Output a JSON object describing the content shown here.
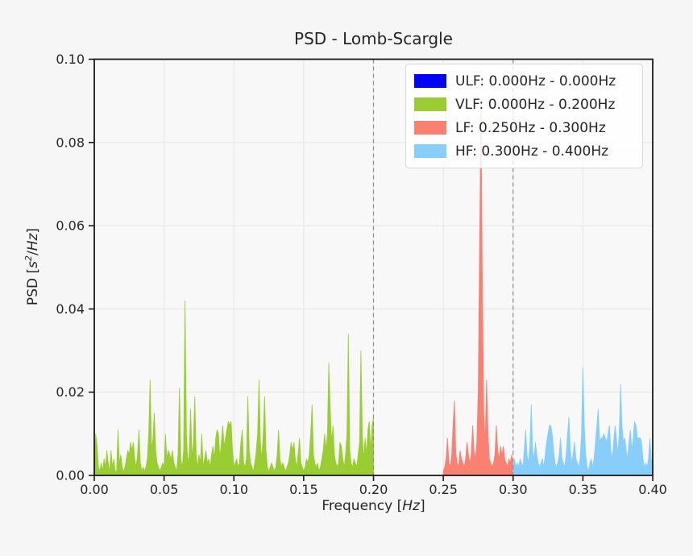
{
  "title": "PSD - Lomb-Scargle",
  "xlabel": {
    "prefix": "Frequency [",
    "unit": "Hz",
    "suffix": "]"
  },
  "ylabel": {
    "prefix": "PSD [",
    "base": "s",
    "sup": "2",
    "mid": "/",
    "unit": "Hz",
    "suffix": "]"
  },
  "legend": {
    "position": "upper right",
    "items": [
      {
        "name": "ULF",
        "label": "ULF: 0.000Hz - 0.000Hz",
        "color": "#0000ff"
      },
      {
        "name": "VLF",
        "label": "VLF: 0.000Hz - 0.200Hz",
        "color": "#9acd32"
      },
      {
        "name": "LF",
        "label": "LF: 0.250Hz - 0.300Hz",
        "color": "#fa8072"
      },
      {
        "name": "HF",
        "label": "HF: 0.300Hz - 0.400Hz",
        "color": "#87cefa"
      }
    ]
  },
  "colors": {
    "figure_bg": "#f6f6f6",
    "plot_bg": "#f8f8f8",
    "grid": "#e8e8e8",
    "spine": "#1a1a1a",
    "dashed_line": "#8c8c8c",
    "text": "#262626"
  },
  "chart_data": {
    "type": "area",
    "title": "PSD - Lomb-Scargle",
    "xlabel": "Frequency [Hz]",
    "ylabel": "PSD [s^2/Hz]",
    "xlim": [
      0.0,
      0.4
    ],
    "ylim": [
      0.0,
      0.1
    ],
    "xticks": [
      0.0,
      0.05,
      0.1,
      0.15,
      0.2,
      0.25,
      0.3,
      0.35,
      0.4
    ],
    "xtick_labels": [
      "0.00",
      "0.05",
      "0.10",
      "0.15",
      "0.20",
      "0.25",
      "0.30",
      "0.35",
      "0.40"
    ],
    "yticks": [
      0.0,
      0.02,
      0.04,
      0.06,
      0.08,
      0.1
    ],
    "ytick_labels": [
      "0.00",
      "0.02",
      "0.04",
      "0.06",
      "0.08",
      "0.10"
    ],
    "grid": true,
    "legend_position": "upper right",
    "band_boundary_lines_x": [
      0.2,
      0.3
    ],
    "series": [
      {
        "name": "ULF",
        "band_hz": [
          0.0,
          0.0
        ],
        "color": "#0000ff",
        "f_start": 0.0,
        "f_step": 0.001,
        "values": []
      },
      {
        "name": "VLF",
        "band_hz": [
          0.0,
          0.2
        ],
        "color": "#9acd32",
        "f_start": 0.0,
        "f_step": 0.001,
        "values": [
          0.001,
          0.01,
          0.007,
          0.002,
          0.001,
          0.003,
          0.001,
          0.004,
          0.002,
          0.006,
          0.003,
          0.001,
          0.006,
          0.002,
          0.004,
          0.001,
          0.001,
          0.011,
          0.003,
          0.005,
          0.002,
          0.001,
          0.002,
          0.004,
          0.006,
          0.005,
          0.008,
          0.006,
          0.008,
          0.004,
          0.002,
          0.005,
          0.011,
          0.003,
          0.001,
          0.002,
          0.001,
          0.002,
          0.004,
          0.01,
          0.023,
          0.006,
          0.009,
          0.015,
          0.006,
          0.003,
          0.002,
          0.001,
          0.002,
          0.003,
          0.002,
          0.01,
          0.004,
          0.006,
          0.005,
          0.004,
          0.006,
          0.003,
          0.002,
          0.001,
          0.005,
          0.021,
          0.004,
          0.002,
          0.006,
          0.042,
          0.01,
          0.003,
          0.005,
          0.016,
          0.004,
          0.008,
          0.019,
          0.005,
          0.002,
          0.005,
          0.003,
          0.01,
          0.002,
          0.004,
          0.006,
          0.003,
          0.004,
          0.002,
          0.005,
          0.007,
          0.004,
          0.009,
          0.011,
          0.01,
          0.004,
          0.008,
          0.012,
          0.007,
          0.009,
          0.011,
          0.013,
          0.012,
          0.013,
          0.006,
          0.002,
          0.003,
          0.004,
          0.002,
          0.003,
          0.008,
          0.011,
          0.003,
          0.002,
          0.004,
          0.019,
          0.006,
          0.003,
          0.002,
          0.001,
          0.003,
          0.006,
          0.01,
          0.023,
          0.008,
          0.004,
          0.01,
          0.019,
          0.006,
          0.002,
          0.001,
          0.002,
          0.003,
          0.002,
          0.001,
          0.002,
          0.005,
          0.011,
          0.004,
          0.002,
          0.003,
          0.002,
          0.001,
          0.002,
          0.003,
          0.005,
          0.008,
          0.006,
          0.008,
          0.004,
          0.002,
          0.005,
          0.009,
          0.003,
          0.002,
          0.001,
          0.002,
          0.004,
          0.003,
          0.005,
          0.01,
          0.017,
          0.005,
          0.003,
          0.002,
          0.003,
          0.001,
          0.002,
          0.004,
          0.006,
          0.01,
          0.006,
          0.01,
          0.027,
          0.016,
          0.008,
          0.012,
          0.005,
          0.003,
          0.002,
          0.003,
          0.008,
          0.007,
          0.004,
          0.002,
          0.005,
          0.01,
          0.034,
          0.006,
          0.003,
          0.002,
          0.004,
          0.003,
          0.002,
          0.005,
          0.008,
          0.03,
          0.01,
          0.004,
          0.009,
          0.005,
          0.011,
          0.013,
          0.006,
          0.012,
          0.014
        ]
      },
      {
        "name": "LF",
        "band_hz": [
          0.25,
          0.3
        ],
        "color": "#fa8072",
        "f_start": 0.25,
        "f_step": 0.001,
        "values": [
          0.001,
          0.002,
          0.004,
          0.009,
          0.003,
          0.002,
          0.005,
          0.012,
          0.018,
          0.005,
          0.003,
          0.002,
          0.006,
          0.004,
          0.003,
          0.002,
          0.004,
          0.008,
          0.005,
          0.003,
          0.005,
          0.012,
          0.006,
          0.004,
          0.008,
          0.02,
          0.055,
          0.09,
          0.045,
          0.015,
          0.008,
          0.023,
          0.01,
          0.004,
          0.003,
          0.002,
          0.003,
          0.005,
          0.012,
          0.006,
          0.004,
          0.007,
          0.005,
          0.007,
          0.004,
          0.003,
          0.002,
          0.004,
          0.003,
          0.005,
          0.002
        ]
      },
      {
        "name": "HF",
        "band_hz": [
          0.3,
          0.4
        ],
        "color": "#87cefa",
        "f_start": 0.3,
        "f_step": 0.001,
        "values": [
          0.002,
          0.004,
          0.002,
          0.003,
          0.002,
          0.004,
          0.003,
          0.002,
          0.006,
          0.011,
          0.005,
          0.003,
          0.007,
          0.017,
          0.006,
          0.004,
          0.008,
          0.005,
          0.003,
          0.002,
          0.003,
          0.004,
          0.002,
          0.005,
          0.008,
          0.01,
          0.012,
          0.012,
          0.01,
          0.006,
          0.003,
          0.002,
          0.003,
          0.005,
          0.009,
          0.004,
          0.003,
          0.002,
          0.005,
          0.01,
          0.014,
          0.006,
          0.003,
          0.005,
          0.008,
          0.004,
          0.003,
          0.002,
          0.004,
          0.01,
          0.026,
          0.012,
          0.005,
          0.002,
          0.001,
          0.003,
          0.004,
          0.002,
          0.004,
          0.008,
          0.012,
          0.016,
          0.008,
          0.009,
          0.009,
          0.01,
          0.009,
          0.008,
          0.01,
          0.012,
          0.006,
          0.004,
          0.008,
          0.012,
          0.009,
          0.005,
          0.01,
          0.022,
          0.012,
          0.008,
          0.009,
          0.006,
          0.004,
          0.008,
          0.011,
          0.006,
          0.009,
          0.013,
          0.012,
          0.009,
          0.009,
          0.009,
          0.008,
          0.004,
          0.002,
          0.003,
          0.002,
          0.004,
          0.009,
          0.004,
          0.002
        ]
      }
    ]
  }
}
